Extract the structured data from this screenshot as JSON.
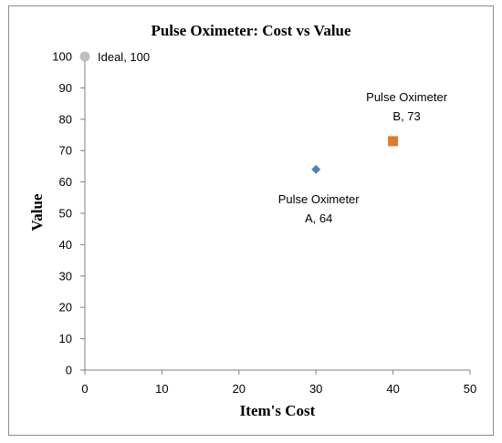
{
  "chart_data": {
    "type": "scatter",
    "title": "Pulse Oximeter: Cost vs Value",
    "xlabel": "Item's Cost",
    "ylabel": "Value",
    "xlim": [
      0,
      50
    ],
    "ylim": [
      0,
      100
    ],
    "x_ticks": [
      0,
      10,
      20,
      30,
      40,
      50
    ],
    "y_ticks": [
      0,
      10,
      20,
      30,
      40,
      50,
      60,
      70,
      80,
      90,
      100
    ],
    "grid": false,
    "legend": "none",
    "points": [
      {
        "x": 0,
        "y": 100,
        "label_lines": [
          "Ideal, 100"
        ],
        "marker": "circle",
        "color": "#bfbfbf"
      },
      {
        "x": 30,
        "y": 64,
        "label_lines": [
          "Pulse Oximeter",
          "A, 64"
        ],
        "marker": "diamond",
        "color": "#4f81bd"
      },
      {
        "x": 40,
        "y": 73,
        "label_lines": [
          "Pulse Oximeter",
          "B, 73"
        ],
        "marker": "square",
        "color": "#e07b2a"
      }
    ]
  }
}
